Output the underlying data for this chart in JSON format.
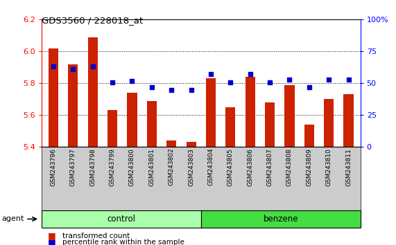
{
  "title": "GDS3560 / 228018_at",
  "samples": [
    "GSM243796",
    "GSM243797",
    "GSM243798",
    "GSM243799",
    "GSM243800",
    "GSM243801",
    "GSM243802",
    "GSM243803",
    "GSM243804",
    "GSM243805",
    "GSM243806",
    "GSM243807",
    "GSM243808",
    "GSM243809",
    "GSM243810",
    "GSM243811"
  ],
  "bar_values": [
    6.02,
    5.92,
    6.09,
    5.63,
    5.74,
    5.69,
    5.44,
    5.43,
    5.83,
    5.65,
    5.84,
    5.68,
    5.79,
    5.54,
    5.7,
    5.73
  ],
  "percentile_values": [
    63,
    61,
    63,
    51,
    52,
    47,
    45,
    45,
    57,
    51,
    57,
    51,
    53,
    47,
    53,
    53
  ],
  "ylim": [
    5.4,
    6.2
  ],
  "bar_color": "#cc2200",
  "marker_color": "#0000cc",
  "control_samples": 8,
  "control_label": "control",
  "treatment_label": "benzene",
  "control_color": "#aaffaa",
  "treatment_color": "#44dd44",
  "agent_label": "agent",
  "legend_bar_label": "transformed count",
  "legend_marker_label": "percentile rank within the sample",
  "yticks_left": [
    5.4,
    5.6,
    5.8,
    6.0,
    6.2
  ],
  "yticks_right": [
    0,
    25,
    50,
    75,
    100
  ],
  "gridlines_at": [
    5.6,
    5.8,
    6.0
  ]
}
